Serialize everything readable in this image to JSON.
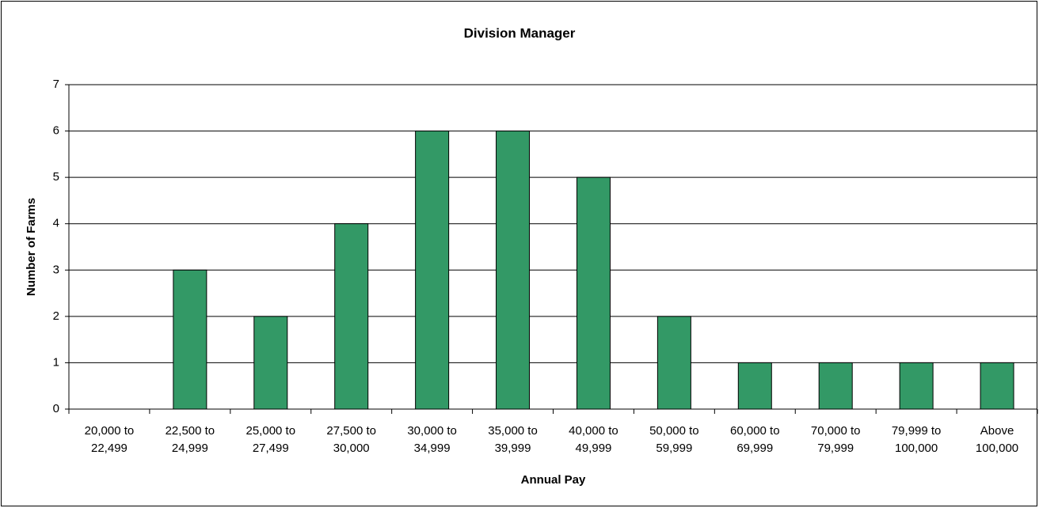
{
  "chart_data": {
    "type": "bar",
    "title": "Division Manager",
    "x_label": "Annual Pay",
    "y_label": "Number of Farms",
    "categories": [
      "20,000 to 22,499",
      "22,500 to 24,999",
      "25,000 to 27,499",
      "27,500 to 30,000",
      "30,000 to 34,999",
      "35,000 to 39,999",
      "40,000 to 49,999",
      "50,000 to 59,999",
      "60,000 to 69,999",
      "70,000 to 79,999",
      "79,999 to 100,000",
      "Above 100,000"
    ],
    "values": [
      0,
      3,
      2,
      4,
      6,
      6,
      5,
      2,
      1,
      1,
      1,
      1
    ],
    "color": "#339966",
    "ylim": [
      0,
      7
    ],
    "yticks": [
      0,
      1,
      2,
      3,
      4,
      5,
      6,
      7
    ],
    "grid": true
  }
}
